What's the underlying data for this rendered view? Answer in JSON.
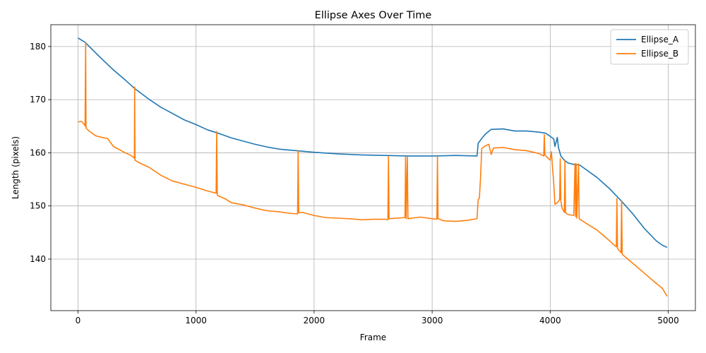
{
  "chart_data": {
    "type": "line",
    "title": "Ellipse Axes Over Time",
    "xlabel": "Frame",
    "ylabel": "Length (pixels)",
    "xlim": [
      -230,
      5230
    ],
    "ylim": [
      130.3,
      184.1
    ],
    "xticks": [
      0,
      1000,
      2000,
      3000,
      4000,
      5000
    ],
    "yticks": [
      140,
      150,
      160,
      170,
      180
    ],
    "grid": true,
    "legend": "top-right",
    "series": [
      {
        "name": "Ellipse_A",
        "color": "#1f77b4",
        "points": [
          [
            0,
            181.6
          ],
          [
            60,
            180.8
          ],
          [
            100,
            179.9
          ],
          [
            200,
            177.7
          ],
          [
            300,
            175.6
          ],
          [
            400,
            173.7
          ],
          [
            480,
            172.1
          ],
          [
            600,
            170.1
          ],
          [
            700,
            168.6
          ],
          [
            800,
            167.4
          ],
          [
            900,
            166.2
          ],
          [
            1000,
            165.3
          ],
          [
            1100,
            164.3
          ],
          [
            1200,
            163.6
          ],
          [
            1300,
            162.8
          ],
          [
            1400,
            162.2
          ],
          [
            1500,
            161.6
          ],
          [
            1600,
            161.1
          ],
          [
            1700,
            160.7
          ],
          [
            1800,
            160.5
          ],
          [
            1900,
            160.3
          ],
          [
            2000,
            160.1
          ],
          [
            2200,
            159.8
          ],
          [
            2400,
            159.6
          ],
          [
            2600,
            159.5
          ],
          [
            2800,
            159.4
          ],
          [
            3000,
            159.4
          ],
          [
            3200,
            159.5
          ],
          [
            3380,
            159.4
          ],
          [
            3390,
            161.8
          ],
          [
            3420,
            162.7
          ],
          [
            3450,
            163.5
          ],
          [
            3500,
            164.4
          ],
          [
            3600,
            164.5
          ],
          [
            3700,
            164.1
          ],
          [
            3800,
            164.1
          ],
          [
            3900,
            163.9
          ],
          [
            3960,
            163.7
          ],
          [
            4000,
            163.1
          ],
          [
            4030,
            162.6
          ],
          [
            4040,
            161.2
          ],
          [
            4060,
            162.9
          ],
          [
            4070,
            161.0
          ],
          [
            4090,
            159.4
          ],
          [
            4120,
            158.6
          ],
          [
            4150,
            158.1
          ],
          [
            4200,
            157.8
          ],
          [
            4250,
            157.7
          ],
          [
            4300,
            156.9
          ],
          [
            4400,
            155.3
          ],
          [
            4500,
            153.3
          ],
          [
            4600,
            151.0
          ],
          [
            4700,
            148.5
          ],
          [
            4800,
            145.7
          ],
          [
            4900,
            143.4
          ],
          [
            4950,
            142.6
          ],
          [
            4990,
            142.2
          ]
        ]
      },
      {
        "name": "Ellipse_B",
        "color": "#ff7f0e",
        "points": [
          [
            0,
            165.8
          ],
          [
            30,
            165.9
          ],
          [
            55,
            165.3
          ],
          [
            60,
            165.0
          ],
          [
            65,
            180.8
          ],
          [
            68,
            165.0
          ],
          [
            70,
            164.6
          ],
          [
            100,
            164.0
          ],
          [
            150,
            163.2
          ],
          [
            200,
            162.9
          ],
          [
            250,
            162.7
          ],
          [
            300,
            161.2
          ],
          [
            400,
            160.0
          ],
          [
            450,
            159.5
          ],
          [
            478,
            159.0
          ],
          [
            480,
            172.4
          ],
          [
            483,
            158.6
          ],
          [
            520,
            158.1
          ],
          [
            600,
            157.3
          ],
          [
            700,
            155.8
          ],
          [
            800,
            154.7
          ],
          [
            900,
            154.1
          ],
          [
            1000,
            153.5
          ],
          [
            1100,
            152.8
          ],
          [
            1170,
            152.4
          ],
          [
            1175,
            164.0
          ],
          [
            1180,
            152.0
          ],
          [
            1250,
            151.3
          ],
          [
            1300,
            150.6
          ],
          [
            1400,
            150.2
          ],
          [
            1500,
            149.6
          ],
          [
            1600,
            149.1
          ],
          [
            1700,
            148.9
          ],
          [
            1800,
            148.6
          ],
          [
            1860,
            148.5
          ],
          [
            1865,
            160.3
          ],
          [
            1870,
            148.7
          ],
          [
            1900,
            148.8
          ],
          [
            2000,
            148.2
          ],
          [
            2100,
            147.8
          ],
          [
            2200,
            147.7
          ],
          [
            2300,
            147.6
          ],
          [
            2400,
            147.4
          ],
          [
            2500,
            147.5
          ],
          [
            2600,
            147.5
          ],
          [
            2625,
            147.4
          ],
          [
            2630,
            159.3
          ],
          [
            2635,
            147.6
          ],
          [
            2700,
            147.7
          ],
          [
            2770,
            147.8
          ],
          [
            2775,
            159.2
          ],
          [
            2780,
            147.6
          ],
          [
            2790,
            159.2
          ],
          [
            2795,
            147.6
          ],
          [
            2900,
            147.9
          ],
          [
            3000,
            147.6
          ],
          [
            3040,
            147.5
          ],
          [
            3045,
            159.3
          ],
          [
            3050,
            147.6
          ],
          [
            3100,
            147.2
          ],
          [
            3200,
            147.1
          ],
          [
            3300,
            147.3
          ],
          [
            3380,
            147.6
          ],
          [
            3390,
            151.2
          ],
          [
            3400,
            151.4
          ],
          [
            3410,
            155.4
          ],
          [
            3420,
            160.8
          ],
          [
            3450,
            161.3
          ],
          [
            3480,
            161.6
          ],
          [
            3500,
            159.7
          ],
          [
            3520,
            160.9
          ],
          [
            3600,
            161.0
          ],
          [
            3700,
            160.6
          ],
          [
            3800,
            160.4
          ],
          [
            3900,
            159.9
          ],
          [
            3945,
            159.4
          ],
          [
            3950,
            163.4
          ],
          [
            3955,
            159.6
          ],
          [
            4000,
            158.6
          ],
          [
            4010,
            160.2
          ],
          [
            4020,
            157.1
          ],
          [
            4030,
            154.3
          ],
          [
            4040,
            150.3
          ],
          [
            4060,
            150.6
          ],
          [
            4080,
            151.2
          ],
          [
            4085,
            158.9
          ],
          [
            4090,
            151.0
          ],
          [
            4100,
            149.6
          ],
          [
            4120,
            148.8
          ],
          [
            4125,
            158.6
          ],
          [
            4130,
            148.7
          ],
          [
            4150,
            148.4
          ],
          [
            4200,
            148.2
          ],
          [
            4210,
            158.0
          ],
          [
            4215,
            148.0
          ],
          [
            4220,
            157.9
          ],
          [
            4225,
            147.7
          ],
          [
            4240,
            157.9
          ],
          [
            4245,
            147.6
          ],
          [
            4300,
            146.8
          ],
          [
            4400,
            145.4
          ],
          [
            4500,
            143.5
          ],
          [
            4560,
            142.3
          ],
          [
            4565,
            151.4
          ],
          [
            4570,
            142.0
          ],
          [
            4600,
            141.2
          ],
          [
            4605,
            151.0
          ],
          [
            4610,
            140.9
          ],
          [
            4700,
            139.2
          ],
          [
            4800,
            137.3
          ],
          [
            4900,
            135.4
          ],
          [
            4950,
            134.5
          ],
          [
            4990,
            133.0
          ]
        ]
      }
    ]
  }
}
